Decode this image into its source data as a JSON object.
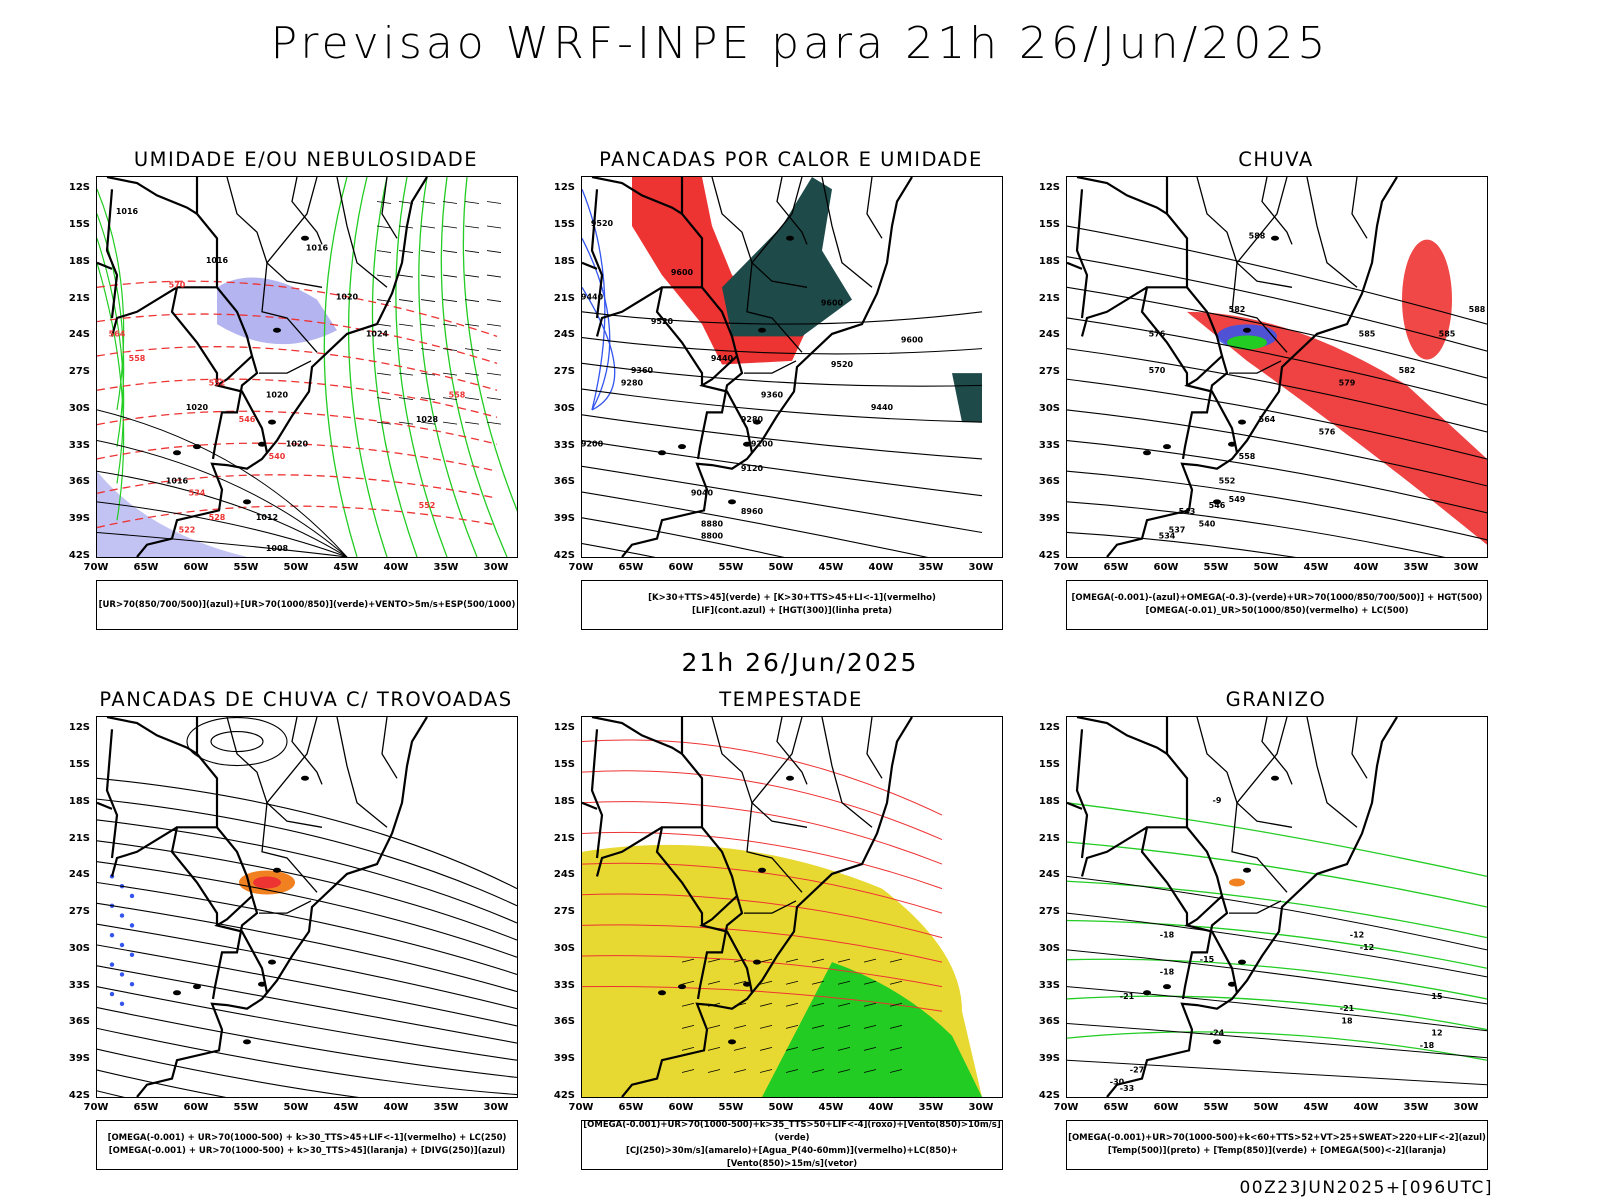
{
  "header": {
    "title": "Previsao WRF-INPE  para 21h 26/Jun/2025",
    "mid_title": "21h 26/Jun/2025",
    "footer": "00Z23JUN2025+[096UTC]"
  },
  "axes": {
    "lat_labels": [
      "12S",
      "15S",
      "18S",
      "21S",
      "24S",
      "27S",
      "30S",
      "33S",
      "36S",
      "39S",
      "42S"
    ],
    "lon_labels": [
      "70W",
      "65W",
      "60W",
      "55W",
      "50W",
      "45W",
      "40W",
      "35W",
      "30W"
    ]
  },
  "colors": {
    "green": "#22cc22",
    "red": "#ee3333",
    "blue": "#3355ee",
    "lavender": "#b4b4f0",
    "darkteal": "#1f4a4a",
    "yellow": "#e8d832",
    "orange": "#f08020",
    "border": "#000000"
  },
  "panels": [
    {
      "title": "UMIDADE E/OU NEBULOSIDADE",
      "legend": [
        "[UR>70(850/700/500)](azul)+[UR>70(1000/850)](verde)+VENTO>5m/s+ESP(500/1000)"
      ],
      "labels": [
        "1016",
        "1016",
        "1016",
        "1020",
        "1024",
        "1028",
        "1020",
        "1020",
        "1020",
        "1016",
        "1012",
        "1008",
        "570",
        "564",
        "558",
        "552",
        "546",
        "540",
        "534",
        "528",
        "522",
        "558",
        "552"
      ]
    },
    {
      "title": "PANCADAS POR CALOR E UMIDADE",
      "legend": [
        "[K>30+TTS>45](verde) + [K>30+TTS>45+LI<-1](vermelho)",
        "[LIF](cont.azul) + [HGT(300)](linha preta)"
      ],
      "labels": [
        "9520",
        "9600",
        "9600",
        "9600",
        "9520",
        "9440",
        "9440",
        "9520",
        "9360",
        "9280",
        "9360",
        "9280",
        "9200",
        "9120",
        "9040",
        "8960",
        "8880",
        "8800",
        "9200",
        "9440"
      ]
    },
    {
      "title": "CHUVA",
      "legend": [
        "[OMEGA(-0.001)-(azul)+OMEGA(-0.3)-(verde)+UR>70(1000/850/700/500)] + HGT(500)",
        "[OMEGA(-0.01)_UR>50(1000/850)(vermelho) + LC(500)"
      ],
      "labels": [
        "588",
        "582",
        "585",
        "576",
        "570",
        "564",
        "558",
        "552",
        "549",
        "546",
        "543",
        "540",
        "537",
        "534",
        "579",
        "576",
        "582",
        "585",
        "588"
      ]
    },
    {
      "title": "PANCADAS DE CHUVA C/ TROVOADAS",
      "legend": [
        "[OMEGA(-0.001) + UR>70(1000-500) + k>30_TTS>45+LIF<-1](vermelho) + LC(250)",
        "[OMEGA(-0.001) + UR>70(1000-500) + k>30_TTS>45](laranja) + [DIVG(250)](azul)"
      ],
      "labels": []
    },
    {
      "title": "TEMPESTADE",
      "legend": [
        "[OMEGA(-0.001)+UR>70(1000-500)+k>35_TTS>50+LIF<-4](roxo)+[Vento(850)>10m/s](verde)",
        "[CJ(250)>30m/s](amarelo)+[Agua_P(40-60mm)](vermelho)+LC(850)+[Vento(850)>15m/s](vetor)"
      ],
      "labels": []
    },
    {
      "title": "GRANIZO",
      "legend": [
        "[OMEGA(-0.001)+UR>70(1000-500)+k<60+TTS>52+VT>25+SWEAT>220+LIF<-2](azul)",
        "[Temp(500)](preto) + [Temp(850)](verde) + [OMEGA(500)<-2](laranja)"
      ],
      "labels": [
        "-9",
        "-12",
        "-15",
        "-18",
        "-21",
        "-24",
        "-27",
        "-30",
        "-33",
        "-18",
        "-21",
        "-12",
        "15",
        "18",
        "12",
        "-18"
      ]
    }
  ]
}
